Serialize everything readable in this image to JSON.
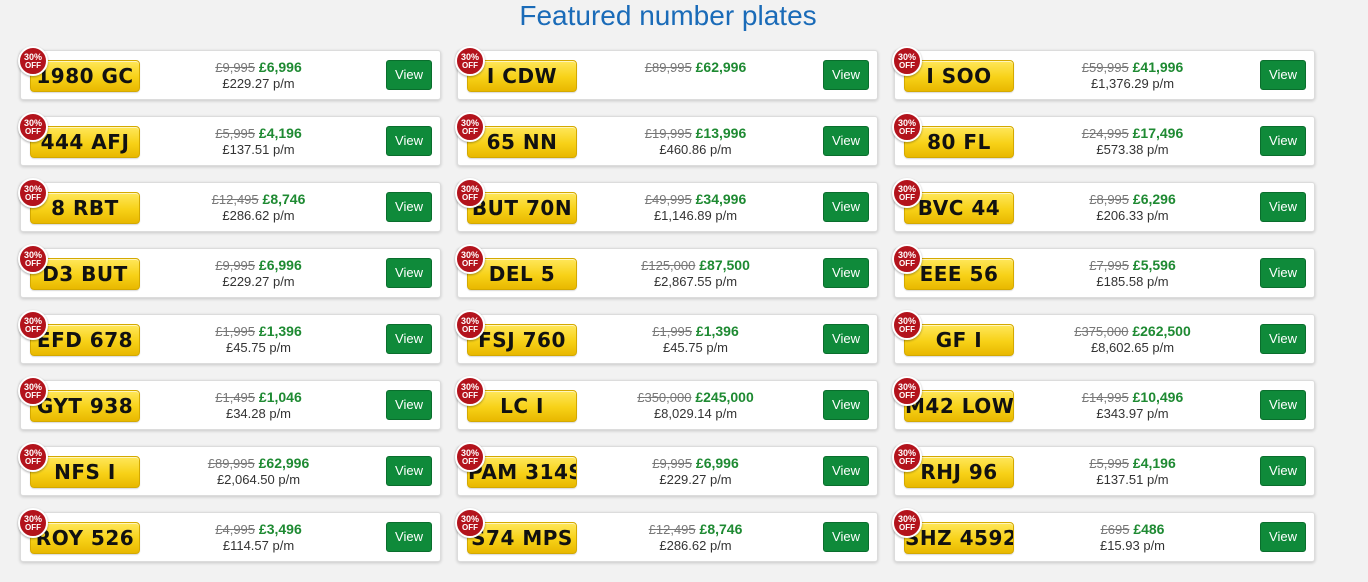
{
  "page": {
    "title": "Featured number plates"
  },
  "badge": {
    "percent": "30%",
    "off": "OFF"
  },
  "view_label": "View",
  "plates": [
    {
      "reg": "1980 GC",
      "old_price": "£9,995",
      "price": "£6,996",
      "monthly": "£229.27 p/m"
    },
    {
      "reg": "I CDW",
      "old_price": "£89,995",
      "price": "£62,996",
      "monthly": ""
    },
    {
      "reg": "I SOO",
      "old_price": "£59,995",
      "price": "£41,996",
      "monthly": "£1,376.29 p/m"
    },
    {
      "reg": "444 AFJ",
      "old_price": "£5,995",
      "price": "£4,196",
      "monthly": "£137.51 p/m"
    },
    {
      "reg": "65 NN",
      "old_price": "£19,995",
      "price": "£13,996",
      "monthly": "£460.86 p/m"
    },
    {
      "reg": "80 FL",
      "old_price": "£24,995",
      "price": "£17,496",
      "monthly": "£573.38 p/m"
    },
    {
      "reg": "8 RBT",
      "old_price": "£12,495",
      "price": "£8,746",
      "monthly": "£286.62 p/m"
    },
    {
      "reg": "BUT 70N",
      "old_price": "£49,995",
      "price": "£34,996",
      "monthly": "£1,146.89 p/m"
    },
    {
      "reg": "BVC 44",
      "old_price": "£8,995",
      "price": "£6,296",
      "monthly": "£206.33 p/m"
    },
    {
      "reg": "D3 BUT",
      "old_price": "£9,995",
      "price": "£6,996",
      "monthly": "£229.27 p/m"
    },
    {
      "reg": "DEL 5",
      "old_price": "£125,000",
      "price": "£87,500",
      "monthly": "£2,867.55 p/m"
    },
    {
      "reg": "EEE 56",
      "old_price": "£7,995",
      "price": "£5,596",
      "monthly": "£185.58 p/m"
    },
    {
      "reg": "EFD 678",
      "old_price": "£1,995",
      "price": "£1,396",
      "monthly": "£45.75 p/m"
    },
    {
      "reg": "FSJ 760",
      "old_price": "£1,995",
      "price": "£1,396",
      "monthly": "£45.75 p/m"
    },
    {
      "reg": "GF I",
      "old_price": "£375,000",
      "price": "£262,500",
      "monthly": "£8,602.65 p/m"
    },
    {
      "reg": "GYT 938",
      "old_price": "£1,495",
      "price": "£1,046",
      "monthly": "£34.28 p/m"
    },
    {
      "reg": "LC I",
      "old_price": "£350,000",
      "price": "£245,000",
      "monthly": "£8,029.14 p/m"
    },
    {
      "reg": "M42 LOW",
      "old_price": "£14,995",
      "price": "£10,496",
      "monthly": "£343.97 p/m"
    },
    {
      "reg": "NFS I",
      "old_price": "£89,995",
      "price": "£62,996",
      "monthly": "£2,064.50 p/m"
    },
    {
      "reg": "PAM 314S",
      "old_price": "£9,995",
      "price": "£6,996",
      "monthly": "£229.27 p/m"
    },
    {
      "reg": "RHJ 96",
      "old_price": "£5,995",
      "price": "£4,196",
      "monthly": "£137.51 p/m"
    },
    {
      "reg": "ROY 526",
      "old_price": "£4,995",
      "price": "£3,496",
      "monthly": "£114.57 p/m"
    },
    {
      "reg": "S74 MPS",
      "old_price": "£12,495",
      "price": "£8,746",
      "monthly": "£286.62 p/m"
    },
    {
      "reg": "SHZ 4592",
      "old_price": "£695",
      "price": "£486",
      "monthly": "£15.93 p/m"
    }
  ]
}
